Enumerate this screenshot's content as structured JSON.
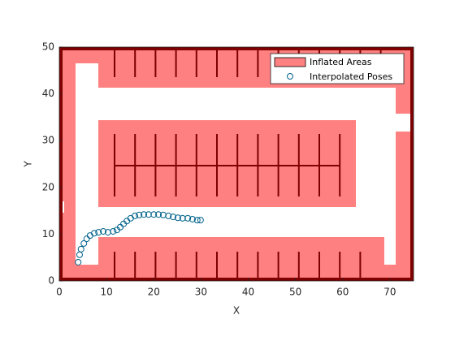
{
  "chart_data": {
    "type": "scatter",
    "xlabel": "X",
    "ylabel": "Y",
    "xlim": [
      0,
      75
    ],
    "ylim": [
      0,
      50
    ],
    "xticks": [
      0,
      10,
      20,
      30,
      40,
      50,
      60,
      70
    ],
    "yticks": [
      0,
      10,
      20,
      30,
      40,
      50
    ],
    "legend": "upper right",
    "area_name": "Inflated Areas",
    "area_color": "#ff8080",
    "series": [
      {
        "name": "Interpolated Poses",
        "color": "#00628b",
        "x": [
          4.0,
          4.3,
          4.6,
          5.2,
          5.8,
          6.5,
          7.4,
          8.3,
          9.3,
          10.3,
          11.4,
          12.2,
          12.9,
          13.6,
          14.3,
          15.1,
          16.0,
          16.9,
          17.9,
          18.9,
          20.0,
          21.0,
          22.0,
          23.1,
          24.1,
          25.1,
          26.1,
          27.2,
          28.2,
          29.2,
          29.9
        ],
        "values": [
          4.0,
          5.6,
          6.8,
          8.0,
          9.0,
          9.7,
          10.2,
          10.4,
          10.6,
          10.4,
          10.6,
          10.9,
          11.5,
          12.2,
          12.8,
          13.4,
          13.9,
          14.1,
          14.2,
          14.2,
          14.2,
          14.2,
          14.1,
          13.9,
          13.7,
          13.5,
          13.4,
          13.4,
          13.2,
          13.0,
          13.0
        ]
      }
    ]
  }
}
